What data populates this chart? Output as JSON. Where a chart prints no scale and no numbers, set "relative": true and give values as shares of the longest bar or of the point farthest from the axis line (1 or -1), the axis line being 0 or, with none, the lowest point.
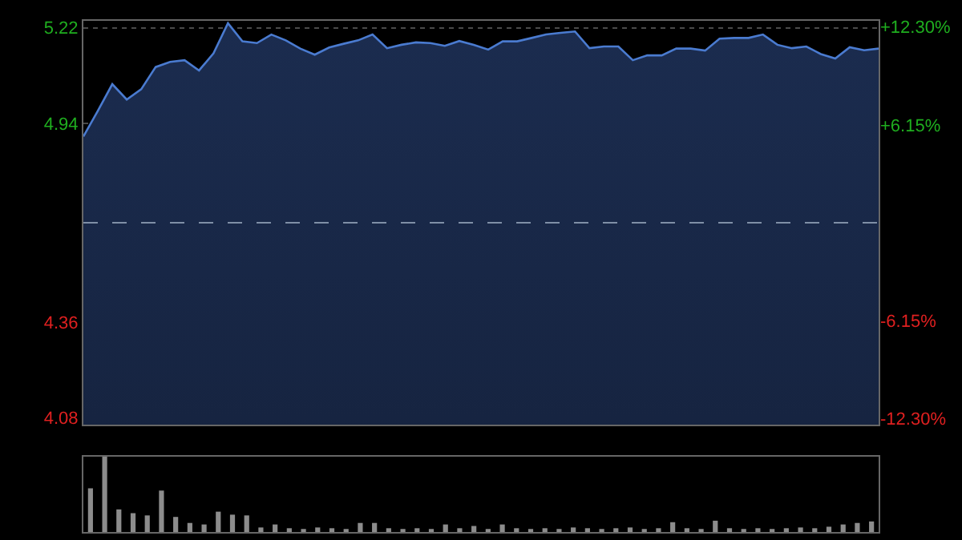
{
  "chart_data": [
    {
      "type": "area",
      "categories": [
        null,
        null,
        null,
        null,
        null,
        null,
        null,
        null,
        null,
        null,
        null,
        null,
        null,
        null,
        null,
        null,
        null,
        null,
        null,
        null,
        null,
        null,
        null,
        null,
        null,
        null,
        null,
        null,
        null,
        null,
        null,
        null,
        null,
        null,
        null,
        null,
        null,
        null,
        null,
        null,
        null,
        null,
        null,
        null,
        null,
        null,
        null,
        null,
        null,
        null,
        null,
        null,
        null,
        null,
        null,
        null
      ],
      "series": [
        {
          "color": "#4a7bd0",
          "values": [
            4.902,
            4.977,
            5.055,
            5.01,
            5.04,
            5.105,
            5.12,
            5.125,
            5.095,
            5.145,
            5.233,
            5.18,
            5.175,
            5.2,
            5.183,
            5.159,
            5.141,
            5.162,
            5.173,
            5.183,
            5.2,
            5.16,
            5.17,
            5.177,
            5.175,
            5.167,
            5.181,
            5.17,
            5.156,
            5.18,
            5.18,
            5.19,
            5.2,
            5.205,
            5.209,
            5.16,
            5.165,
            5.165,
            5.125,
            5.139,
            5.139,
            5.159,
            5.159,
            5.153,
            5.188,
            5.19,
            5.19,
            5.2,
            5.17,
            5.16,
            5.165,
            5.143,
            5.13,
            5.163,
            5.154,
            5.159
          ]
        }
      ],
      "ylim": [
        4.06,
        5.24
      ],
      "yticks": [
        4.08,
        4.36,
        4.94,
        5.22
      ],
      "y2lim": [
        -12.69,
        12.69
      ],
      "y2ticks": [
        {
          "value": -12.3,
          "label": "-12.30%"
        },
        {
          "value": -6.15,
          "label": "-6.15%"
        },
        {
          "value": 6.15,
          "label": "+6.15%"
        },
        {
          "value": 12.3,
          "label": "+12.30%"
        }
      ],
      "ref_lines": [
        {
          "axis": "y",
          "value": 4.65,
          "color": "#7f8fa6",
          "line_style": "dashed"
        }
      ],
      "grid": "y",
      "tick_labels": "y"
    },
    {
      "type": "bar",
      "categories": [
        null,
        null,
        null,
        null,
        null,
        null,
        null,
        null,
        null,
        null,
        null,
        null,
        null,
        null,
        null,
        null,
        null,
        null,
        null,
        null,
        null,
        null,
        null,
        null,
        null,
        null,
        null,
        null,
        null,
        null,
        null,
        null,
        null,
        null,
        null,
        null,
        null,
        null,
        null,
        null,
        null,
        null,
        null,
        null,
        null,
        null,
        null,
        null,
        null,
        null,
        null,
        null,
        null,
        null,
        null,
        null
      ],
      "values": [
        0.58,
        1,
        0.3,
        0.25,
        0.22,
        0.55,
        0.2,
        0.12,
        0.1,
        0.27,
        0.23,
        0.22,
        0.06,
        0.1,
        0.05,
        0.04,
        0.06,
        0.05,
        0.04,
        0.12,
        0.12,
        0.05,
        0.04,
        0.05,
        0.04,
        0.1,
        0.05,
        0.08,
        0.04,
        0.1,
        0.05,
        0.04,
        0.05,
        0.04,
        0.06,
        0.05,
        0.04,
        0.05,
        0.06,
        0.04,
        0.05,
        0.13,
        0.05,
        0.04,
        0.15,
        0.05,
        0.04,
        0.05,
        0.04,
        0.05,
        0.06,
        0.05,
        0.07,
        0.1,
        0.12,
        0.14
      ],
      "color": "#8c8c8c",
      "relative": true
    }
  ]
}
